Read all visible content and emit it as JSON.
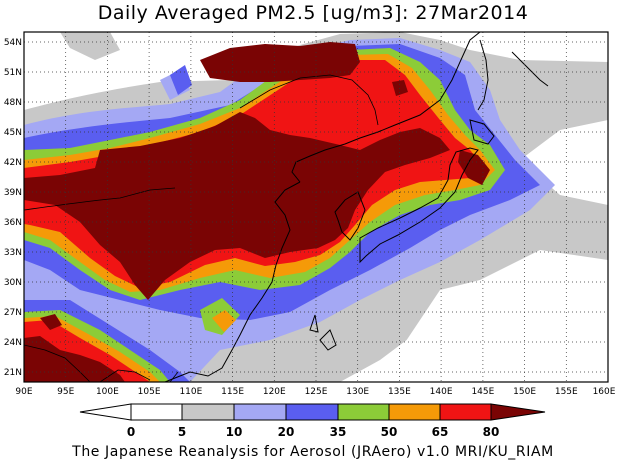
{
  "map": {
    "title": "Daily Averaged PM2.5 [ug/m3]: 27Mar2014",
    "credit": "The Japanese Reanalysis for Aerosol (JRAero) v1.0 MRI/KU_RIAM",
    "lon_range": [
      90,
      160
    ],
    "lat_range": [
      20,
      55
    ],
    "lat_ticks": [
      "54N",
      "51N",
      "48N",
      "45N",
      "42N",
      "39N",
      "36N",
      "33N",
      "30N",
      "27N",
      "24N",
      "21N"
    ],
    "lon_ticks": [
      "90E",
      "95E",
      "100E",
      "105E",
      "110E",
      "115E",
      "120E",
      "125E",
      "130E",
      "135E",
      "140E",
      "145E",
      "150E",
      "155E",
      "160E"
    ],
    "grid": "dotted, every 5 degrees",
    "colors": {
      "below5": "#ffffff",
      "5-10": "#c8c8c8",
      "10-20": "#a4a8f4",
      "20-35": "#5a5ef0",
      "35-50": "#8ccc38",
      "50-65": "#f59a08",
      "65-80": "#f01414",
      "80plus": "#7a0404"
    }
  },
  "colorbar": {
    "labels": [
      "0",
      "5",
      "10",
      "20",
      "35",
      "50",
      "65",
      "80"
    ],
    "colors": [
      "#ffffff",
      "#c8c8c8",
      "#a4a8f4",
      "#5a5ef0",
      "#8ccc38",
      "#f59a08",
      "#f01414",
      "#7a0404"
    ]
  }
}
